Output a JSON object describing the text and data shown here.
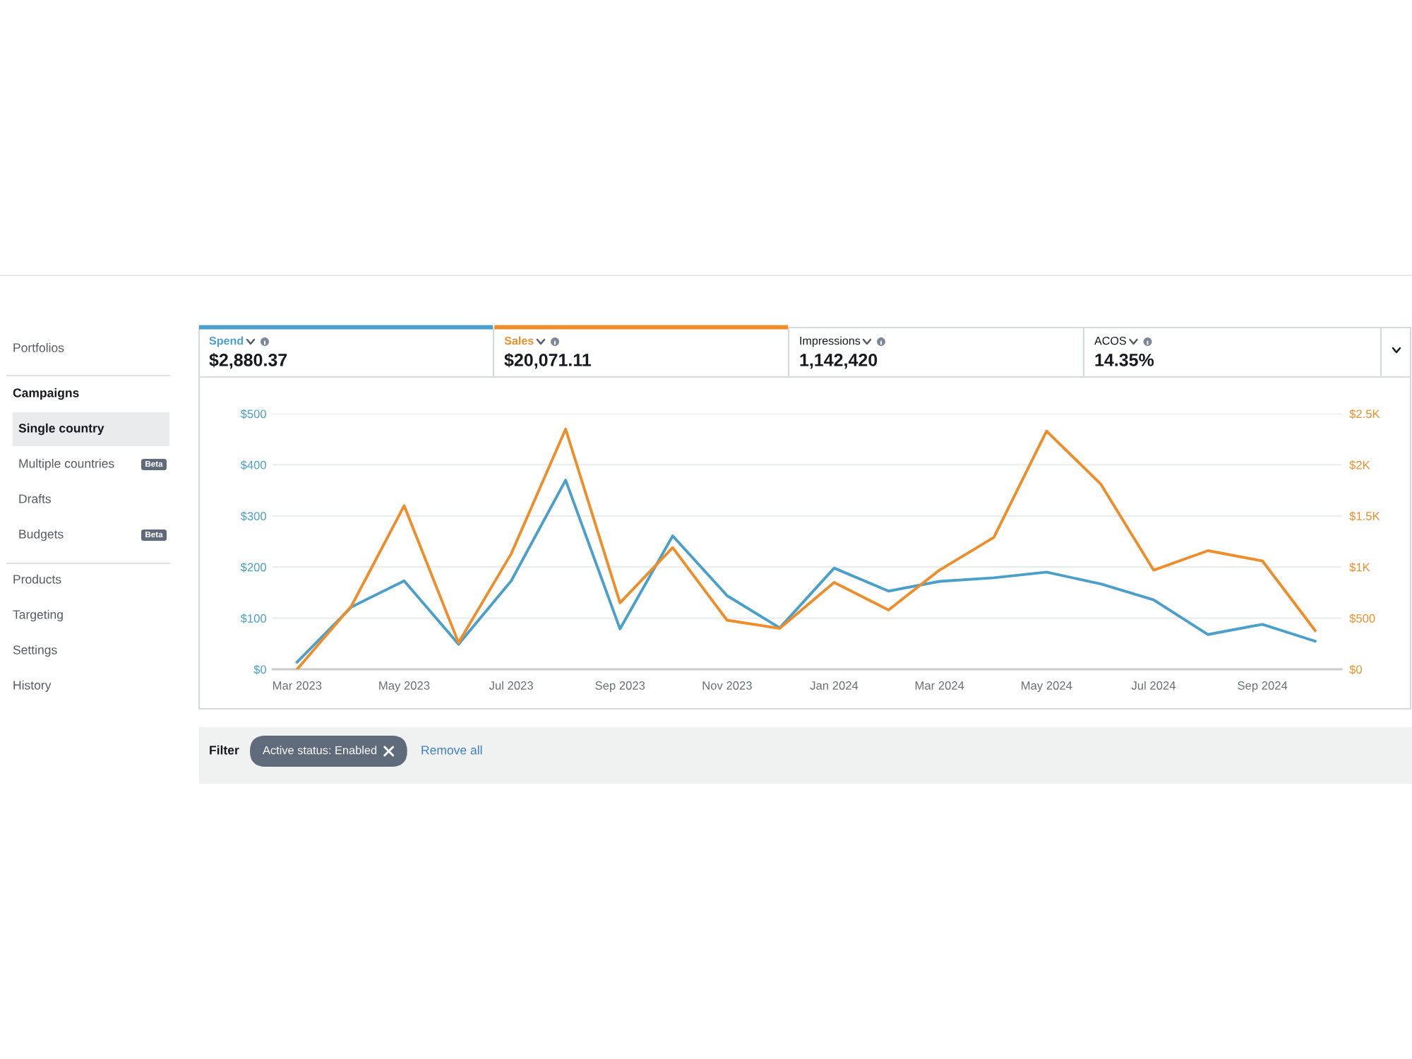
{
  "chart_data": {
    "type": "line",
    "x": [
      "2023-03",
      "2023-04",
      "2023-05",
      "2023-06",
      "2023-07",
      "2023-08",
      "2023-09",
      "2023-10",
      "2023-11",
      "2023-12",
      "2024-01",
      "2024-02",
      "2024-03",
      "2024-04",
      "2024-05",
      "2024-06",
      "2024-07",
      "2024-08",
      "2024-09",
      "2024-10"
    ],
    "series": [
      {
        "name": "Spend",
        "color": "#4a9fcb",
        "values": [
          14,
          122,
          173,
          49,
          173,
          370,
          79,
          261,
          144,
          81,
          198,
          153,
          172,
          179,
          190,
          167,
          136,
          68,
          88,
          55
        ]
      },
      {
        "name": "Sales",
        "color": "#ee8e2a",
        "axis": "y2",
        "values": [
          0,
          620,
          1600,
          260,
          1130,
          2350,
          650,
          1190,
          480,
          400,
          850,
          580,
          970,
          1290,
          2330,
          1810,
          970,
          1160,
          1060,
          380
        ]
      }
    ],
    "xlim": [
      "2023-02-15",
      "2024-10-16"
    ],
    "xticks": [
      {
        "value": "2023-03",
        "label": "Mar 2023"
      },
      {
        "value": "2023-05",
        "label": "May 2023"
      },
      {
        "value": "2023-07",
        "label": "Jul 2023"
      },
      {
        "value": "2023-09",
        "label": "Sep 2023"
      },
      {
        "value": "2023-11",
        "label": "Nov 2023"
      },
      {
        "value": "2024-01",
        "label": "Jan 2024"
      },
      {
        "value": "2024-03",
        "label": "Mar 2024"
      },
      {
        "value": "2024-05",
        "label": "May 2024"
      },
      {
        "value": "2024-07",
        "label": "Jul 2024"
      },
      {
        "value": "2024-09",
        "label": "Sep 2024"
      }
    ],
    "ylim": [
      0,
      500
    ],
    "yticks": [
      {
        "value": 0,
        "label": "$0"
      },
      {
        "value": 100,
        "label": "$100"
      },
      {
        "value": 200,
        "label": "$200"
      },
      {
        "value": 300,
        "label": "$300"
      },
      {
        "value": 400,
        "label": "$400"
      },
      {
        "value": 500,
        "label": "$500"
      }
    ],
    "y2lim": [
      0,
      2500
    ],
    "y2ticks": [
      {
        "value": 0,
        "label": "$0"
      },
      {
        "value": 500,
        "label": "$500"
      },
      {
        "value": 1000,
        "label": "$1K"
      },
      {
        "value": 1500,
        "label": "$1.5K"
      },
      {
        "value": 2000,
        "label": "$2K"
      },
      {
        "value": 2500,
        "label": "$2.5K"
      }
    ],
    "grid": "y",
    "legend": "top",
    "line_style": "solid",
    "marker": "none",
    "annotations": [
      "$2,880.37",
      "$20,071.11",
      "Impressions",
      "1,142,420",
      "ACOS",
      "14.35%",
      "Portfolios",
      "Campaigns",
      "Single country",
      "Multiple countries",
      "Beta",
      "Drafts",
      "Budgets",
      "Beta",
      "Products",
      "Targeting",
      "Settings",
      "History",
      "Filter",
      "Active status: Enabled",
      "Remove all"
    ]
  }
}
